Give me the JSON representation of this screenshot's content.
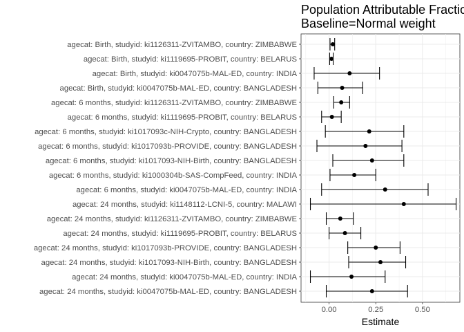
{
  "chart_data": {
    "type": "forest",
    "title": "Population Attributable Fractio",
    "subtitle": "Baseline=Normal weight",
    "xlabel": "Estimate",
    "xlim": [
      -0.15,
      0.7
    ],
    "xticks": [
      "-0.25",
      "0.00",
      "0.25",
      "0.50"
    ],
    "grid": true,
    "rows": [
      {
        "label": "agecat: Birth, studyid: ki1126311-ZVITAMBO, country: ZIMBABWE",
        "estimate": 0.02,
        "lower": 0.005,
        "upper": 0.03
      },
      {
        "label": "agecat: Birth, studyid: ki1119695-PROBIT, country: BELARUS",
        "estimate": 0.013,
        "lower": 0.003,
        "upper": 0.022
      },
      {
        "label": "agecat: Birth, studyid: ki0047075b-MAL-ED, country: INDIA",
        "estimate": 0.11,
        "lower": -0.08,
        "upper": 0.27
      },
      {
        "label": "agecat: Birth, studyid: ki0047075b-MAL-ED, country: BANGLADESH",
        "estimate": 0.07,
        "lower": -0.06,
        "upper": 0.18
      },
      {
        "label": "agecat: 6 months, studyid: ki1126311-ZVITAMBO, country: ZIMBABWE",
        "estimate": 0.065,
        "lower": 0.025,
        "upper": 0.11
      },
      {
        "label": "agecat: 6 months, studyid: ki1119695-PROBIT, country: BELARUS",
        "estimate": 0.015,
        "lower": -0.04,
        "upper": 0.065
      },
      {
        "label": "agecat: 6 months, studyid: ki1017093c-NIH-Crypto, country: BANGLADESH",
        "estimate": 0.215,
        "lower": -0.02,
        "upper": 0.4
      },
      {
        "label": "agecat: 6 months, studyid: ki1017093b-PROVIDE, country: BANGLADESH",
        "estimate": 0.195,
        "lower": -0.065,
        "upper": 0.39
      },
      {
        "label": "agecat: 6 months, studyid: ki1017093-NIH-Birth, country: BANGLADESH",
        "estimate": 0.23,
        "lower": 0.02,
        "upper": 0.4
      },
      {
        "label": "agecat: 6 months, studyid: ki1000304b-SAS-CompFeed, country: INDIA",
        "estimate": 0.135,
        "lower": 0.005,
        "upper": 0.25
      },
      {
        "label": "agecat: 6 months, studyid: ki0047075b-MAL-ED, country: INDIA",
        "estimate": 0.3,
        "lower": -0.04,
        "upper": 0.53
      },
      {
        "label": "agecat: 24 months, studyid: ki1148112-LCNI-5, country: MALAWI",
        "estimate": 0.4,
        "lower": -0.1,
        "upper": 0.68
      },
      {
        "label": "agecat: 24 months, studyid: ki1126311-ZVITAMBO, country: ZIMBABWE",
        "estimate": 0.06,
        "lower": -0.015,
        "upper": 0.13
      },
      {
        "label": "agecat: 24 months, studyid: ki1119695-PROBIT, country: BELARUS",
        "estimate": 0.085,
        "lower": 0.0,
        "upper": 0.17
      },
      {
        "label": "agecat: 24 months, studyid: ki1017093b-PROVIDE, country: BANGLADESH",
        "estimate": 0.25,
        "lower": 0.1,
        "upper": 0.38
      },
      {
        "label": "agecat: 24 months, studyid: ki1017093-NIH-Birth, country: BANGLADESH",
        "estimate": 0.275,
        "lower": 0.105,
        "upper": 0.41
      },
      {
        "label": "agecat: 24 months, studyid: ki0047075b-MAL-ED, country: INDIA",
        "estimate": 0.12,
        "lower": -0.1,
        "upper": 0.3
      },
      {
        "label": "agecat: 24 months, studyid: ki0047075b-MAL-ED, country: BANGLADESH",
        "estimate": 0.23,
        "lower": -0.015,
        "upper": 0.42
      }
    ]
  }
}
